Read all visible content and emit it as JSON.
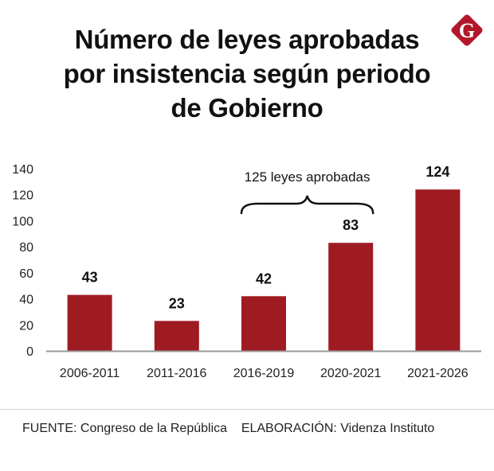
{
  "header": {
    "title_lines": [
      "Número de leyes aprobadas",
      "por insistencia según periodo",
      "de Gobierno"
    ],
    "logo_letter": "G",
    "logo_icon": "brand-g-diamond-icon"
  },
  "colors": {
    "bar": "#9e1b22",
    "axis": "#999999",
    "text": "#111111",
    "logo": "#b3172a"
  },
  "chart_data": {
    "type": "bar",
    "title": "Número de leyes aprobadas por insistencia según periodo de Gobierno",
    "xlabel": "",
    "ylabel": "",
    "categories": [
      "2006-2011",
      "2011-2016",
      "2016-2019",
      "2020-2021",
      "2021-2026"
    ],
    "values": [
      43,
      23,
      42,
      83,
      124
    ],
    "data_labels": [
      "43",
      "23",
      "42",
      "83",
      "124"
    ],
    "ylim": [
      0,
      140
    ],
    "yticks": [
      0,
      20,
      40,
      60,
      80,
      100,
      120,
      140
    ],
    "grid": false,
    "legend": "none",
    "annotations": [
      {
        "text": "125 leyes aprobadas",
        "type": "brace",
        "spans": [
          "2016-2019",
          "2020-2021"
        ]
      }
    ]
  },
  "footer": {
    "source_label": "FUENTE:",
    "source_value": "Congreso de la República",
    "credit_label": "ELABORACIÓN:",
    "credit_value": "Videnza Instituto"
  }
}
